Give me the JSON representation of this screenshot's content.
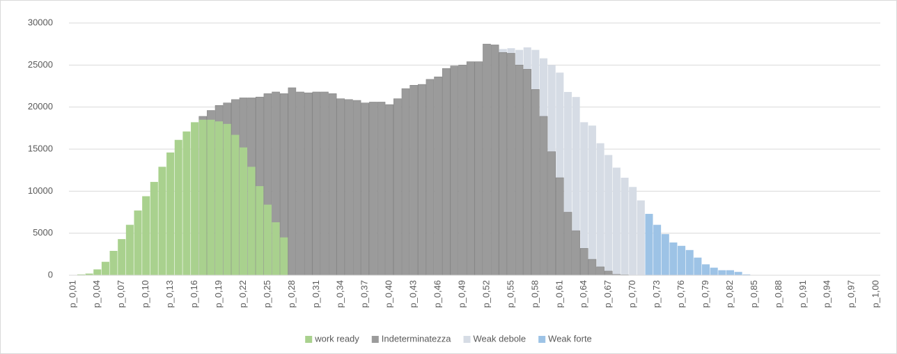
{
  "chart_data": {
    "type": "bar",
    "categories": [
      "p_0,01",
      null,
      null,
      "p_0,04",
      null,
      null,
      "p_0,07",
      null,
      null,
      "p_0,10",
      null,
      null,
      "p_0,13",
      null,
      null,
      "p_0,16",
      null,
      null,
      "p_0,19",
      null,
      null,
      "p_0,22",
      null,
      null,
      "p_0,25",
      null,
      null,
      "p_0,28",
      null,
      null,
      "p_0,31",
      null,
      null,
      "p_0,34",
      null,
      null,
      "p_0,37",
      null,
      null,
      "p_0,40",
      null,
      null,
      "p_0,43",
      null,
      null,
      "p_0,46",
      null,
      null,
      "p_0,49",
      null,
      null,
      "p_0,52",
      null,
      null,
      "p_0,55",
      null,
      null,
      "p_0,58",
      null,
      null,
      "p_0,61",
      null,
      null,
      "p_0,64",
      null,
      null,
      "p_0,67",
      null,
      null,
      "p_0,70",
      null,
      null,
      "p_0,73",
      null,
      null,
      "p_0,76",
      null,
      null,
      "p_0,79",
      null,
      null,
      "p_0,82",
      null,
      null,
      "p_0,85",
      null,
      null,
      "p_0,88",
      null,
      null,
      "p_0,91",
      null,
      null,
      "p_0,94",
      null,
      null,
      "p_0,97",
      null,
      null,
      "p_1,00"
    ],
    "series": [
      {
        "name": "work ready",
        "color": "#a9d18e",
        "values": [
          0,
          100,
          200,
          700,
          1600,
          2900,
          4300,
          6000,
          7700,
          9400,
          11100,
          12900,
          14600,
          16100,
          17100,
          18200,
          18500,
          18500,
          18300,
          18000,
          16700,
          15200,
          12900,
          10600,
          8400,
          6300,
          4500,
          0,
          0,
          0,
          0,
          0,
          0,
          0,
          0,
          0,
          0,
          0,
          0,
          0,
          0,
          0,
          0,
          0,
          0,
          0,
          0,
          0,
          0,
          0,
          0,
          0,
          0,
          0,
          0,
          0,
          0,
          0,
          0,
          0,
          0,
          0,
          0,
          0,
          0,
          0,
          0,
          0,
          0,
          0,
          0,
          0,
          0,
          0,
          0,
          0,
          0,
          0,
          0,
          0,
          0,
          0,
          0,
          0,
          0,
          0,
          0,
          0,
          0,
          0,
          0,
          0,
          0,
          0,
          0,
          0,
          0,
          0,
          0,
          0
        ]
      },
      {
        "name": "Indeterminatezza",
        "color": "#9b9b9b",
        "values": [
          0,
          0,
          0,
          0,
          0,
          0,
          0,
          0,
          0,
          0,
          0,
          0,
          0,
          0,
          0,
          0,
          18900,
          19600,
          20200,
          20500,
          20900,
          21100,
          21100,
          21200,
          21600,
          21800,
          21600,
          22300,
          21800,
          21700,
          21800,
          21800,
          21600,
          21000,
          20900,
          20800,
          20500,
          20600,
          20600,
          20300,
          21000,
          22200,
          22600,
          22700,
          23300,
          23600,
          24600,
          24900,
          25000,
          25400,
          25400,
          27500,
          27400,
          26500,
          26400,
          25000,
          24500,
          22100,
          18900,
          14700,
          11600,
          7500,
          5300,
          3200,
          1900,
          1000,
          500,
          100,
          50,
          0,
          0,
          0,
          0,
          0,
          0,
          0,
          0,
          0,
          0,
          0,
          0,
          0,
          0,
          0,
          0,
          0,
          0,
          0,
          0,
          0,
          0,
          0,
          0,
          0,
          0,
          0,
          0,
          0,
          0,
          0
        ]
      },
      {
        "name": "Weak debole",
        "color": "#d6dce5",
        "values": [
          0,
          0,
          0,
          0,
          0,
          0,
          0,
          0,
          0,
          0,
          0,
          0,
          0,
          0,
          0,
          0,
          0,
          0,
          0,
          0,
          0,
          0,
          0,
          0,
          0,
          0,
          0,
          0,
          0,
          0,
          0,
          0,
          0,
          0,
          0,
          0,
          0,
          0,
          0,
          0,
          0,
          0,
          0,
          0,
          0,
          0,
          0,
          0,
          0,
          0,
          0,
          0,
          0,
          26900,
          27000,
          26800,
          27100,
          26800,
          25800,
          25000,
          24100,
          21800,
          21200,
          18200,
          17800,
          15700,
          14300,
          12800,
          11600,
          10500,
          8900,
          0,
          0,
          0,
          0,
          0,
          0,
          0,
          0,
          0,
          0,
          0,
          0,
          0,
          0,
          0,
          0,
          0,
          0,
          0,
          0,
          0,
          0,
          0,
          0,
          0,
          0,
          0,
          0,
          0
        ]
      },
      {
        "name": "Weak forte",
        "color": "#9dc3e6",
        "values": [
          0,
          0,
          0,
          0,
          0,
          0,
          0,
          0,
          0,
          0,
          0,
          0,
          0,
          0,
          0,
          0,
          0,
          0,
          0,
          0,
          0,
          0,
          0,
          0,
          0,
          0,
          0,
          0,
          0,
          0,
          0,
          0,
          0,
          0,
          0,
          0,
          0,
          0,
          0,
          0,
          0,
          0,
          0,
          0,
          0,
          0,
          0,
          0,
          0,
          0,
          0,
          0,
          0,
          0,
          0,
          0,
          0,
          0,
          0,
          0,
          0,
          0,
          0,
          0,
          0,
          0,
          0,
          0,
          0,
          0,
          0,
          7300,
          6000,
          4900,
          3900,
          3500,
          3000,
          2100,
          1300,
          900,
          600,
          600,
          400,
          100,
          0,
          0,
          0,
          0,
          0,
          0,
          0,
          0,
          0,
          0,
          0,
          0,
          0,
          0,
          0,
          0
        ]
      }
    ],
    "ylim": [
      0,
      30000
    ],
    "yticks": [
      0,
      5000,
      10000,
      15000,
      20000,
      25000,
      30000
    ],
    "grid": true,
    "legend": "bottom"
  }
}
